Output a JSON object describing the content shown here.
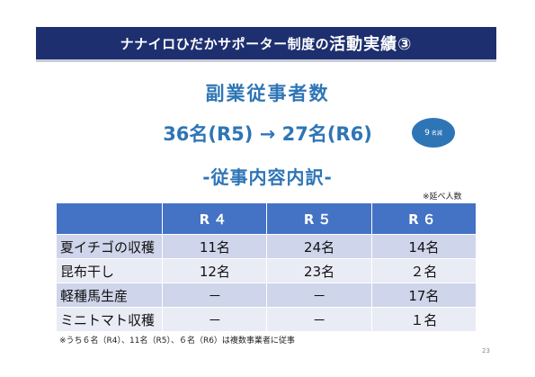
{
  "slide": {
    "title_normal": "ナナイロひだかサポーター制度の",
    "title_strong": "活動実績③",
    "heading": "副業従事者数",
    "comparison": "36名(R5) → 27名(R6)",
    "badge_value": "9",
    "badge_unit": "名減",
    "subheading": "-従事内容内訳-",
    "note_top": "※延べ人数",
    "footnote": "※うち６名（R4）、11名（R5）、６名（R6）は複数事業者に従事",
    "page_number": "23"
  },
  "table": {
    "headers": [
      "",
      "R４",
      "R５",
      "R６"
    ],
    "rows": [
      [
        "夏イチゴの収穫",
        "11名",
        "24名",
        "14名"
      ],
      [
        "昆布干し",
        "12名",
        "23名",
        "２名"
      ],
      [
        "軽種馬生産",
        "－",
        "－",
        "17名"
      ],
      [
        "ミニトマト収穫",
        "－",
        "－",
        "１名"
      ]
    ]
  },
  "colors": {
    "title_bg": "#1d2f6f",
    "accent_blue": "#2e75b6",
    "table_header": "#4472c4",
    "row_odd": "#cfd5ea",
    "row_even": "#e9ebf5"
  }
}
